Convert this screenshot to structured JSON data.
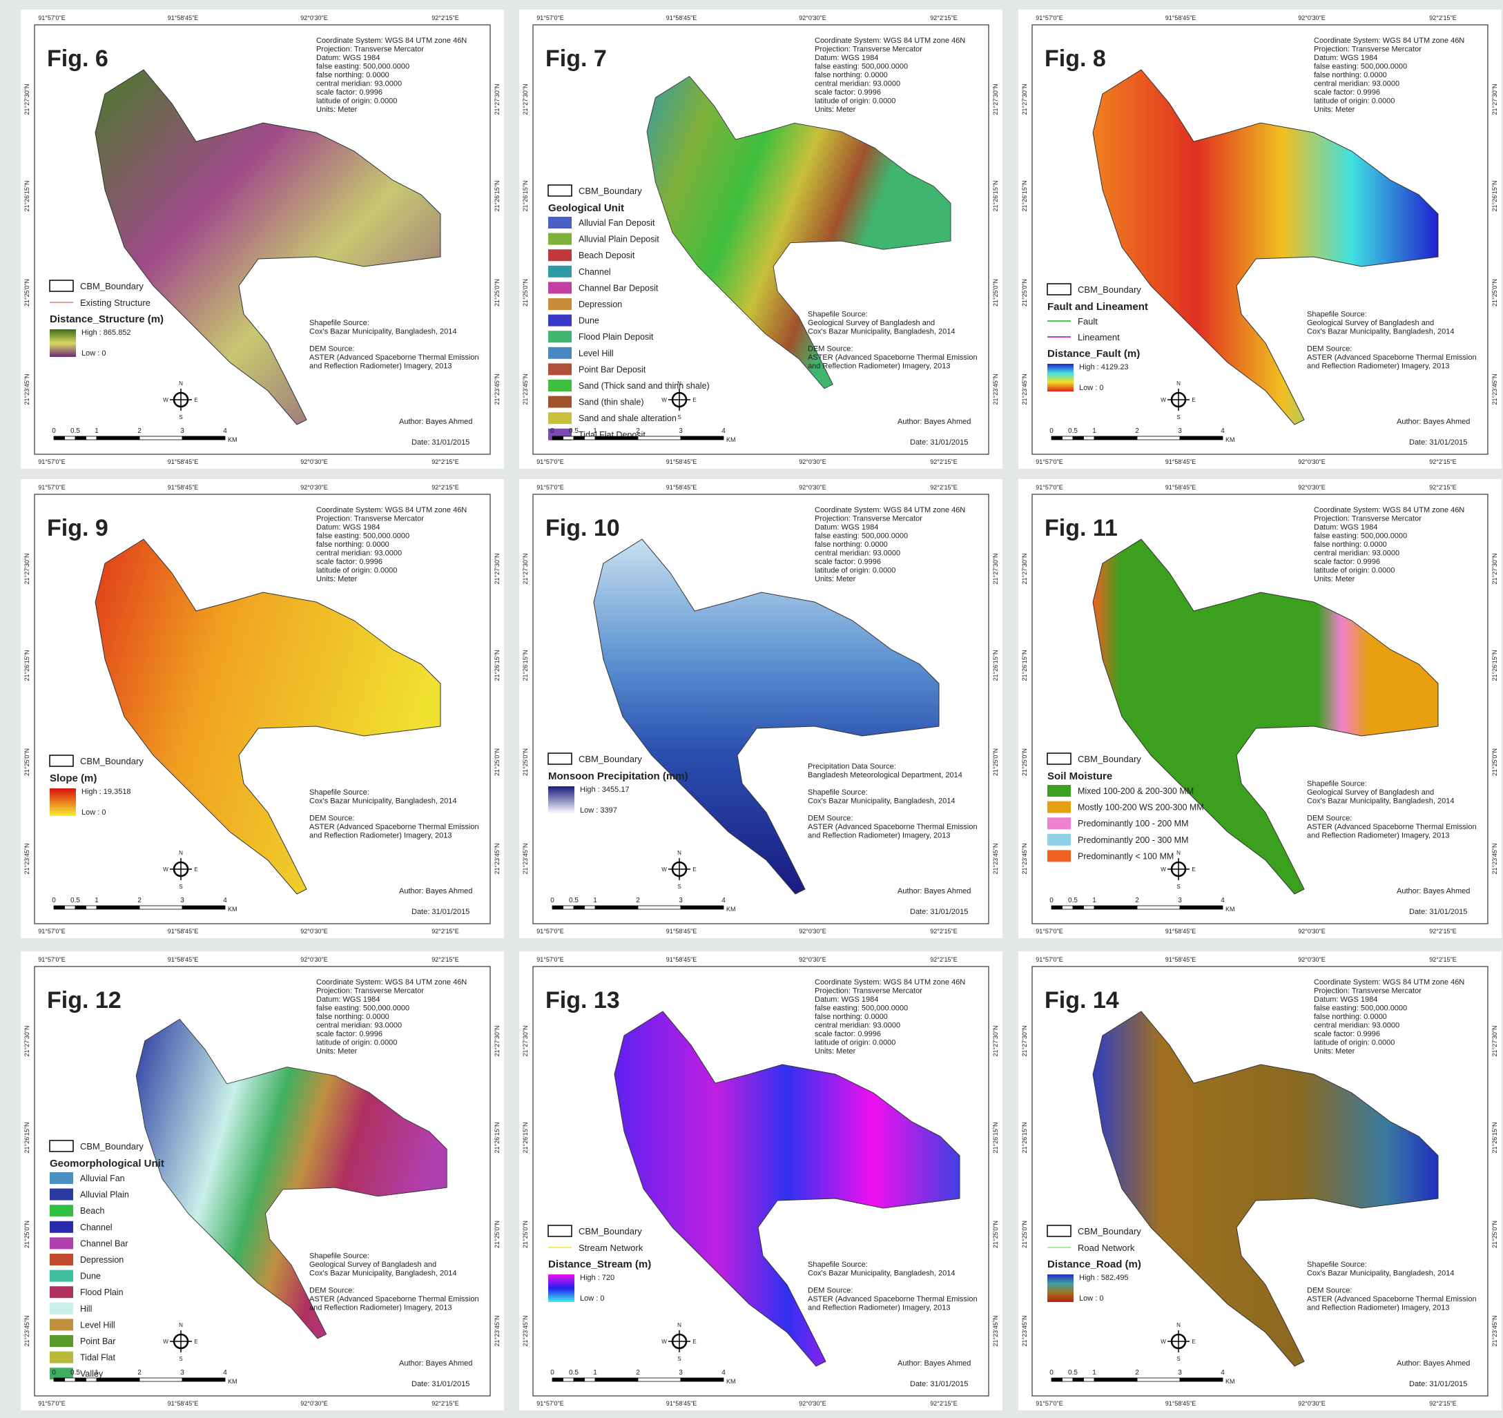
{
  "common": {
    "lon_labels": [
      "91°57'0\"E",
      "91°58'45\"E",
      "92°0'30\"E",
      "92°2'15\"E"
    ],
    "lat_labels": [
      "21°27'30\"N",
      "21°26'15\"N",
      "21°25'0\"N",
      "21°23'45\"N"
    ],
    "projection": [
      "Coordinate System: WGS 84 UTM zone 46N",
      "Projection: Transverse Mercator",
      "Datum: WGS 1984",
      "false easting: 500,000.0000",
      "false northing: 0.0000",
      "central meridian: 93.0000",
      "scale factor: 0.9996",
      "latitude of origin: 0.0000",
      "Units: Meter"
    ],
    "scale_labels": [
      "0",
      "0.5",
      "1",
      "2",
      "3",
      "4",
      "KM"
    ],
    "compass": [
      "N",
      "E",
      "S",
      "W"
    ],
    "author": "Author: Bayes Ahmed",
    "date": "Date: 31/01/2015"
  },
  "panels": [
    {
      "figure": "Fig. 6",
      "legend": [
        {
          "kind": "box",
          "label": "CBM_Boundary"
        },
        {
          "kind": "line",
          "label": "Existing Structure",
          "color": "#e8a0a0"
        },
        {
          "kind": "heading",
          "label": "Distance_Structure (m)"
        },
        {
          "kind": "ramp",
          "high": "High : 865.852",
          "low": "Low : 0",
          "colors": [
            "#3a6a1a",
            "#d8d860",
            "#6a2a7a"
          ]
        }
      ],
      "sources": [
        [
          "Shapefile Source:",
          "Cox's Bazar Municipality, Bangladesh, 2014"
        ],
        [
          "DEM Source:",
          "ASTER (Advanced Spaceborne Thermal Emission",
          "and Reflection Radiometer) Imagery, 2013"
        ]
      ]
    },
    {
      "figure": "Fig. 7",
      "legend": [
        {
          "kind": "box",
          "label": "CBM_Boundary"
        },
        {
          "kind": "heading",
          "label": "Geological Unit"
        },
        {
          "kind": "swatch",
          "label": "Alluvial Fan Deposit",
          "color": "#4a5fc1"
        },
        {
          "kind": "swatch",
          "label": "Alluvial Plain Deposit",
          "color": "#7fb03a"
        },
        {
          "kind": "swatch",
          "label": "Beach Deposit",
          "color": "#c0393b"
        },
        {
          "kind": "swatch",
          "label": "Channel",
          "color": "#2e9aa3"
        },
        {
          "kind": "swatch",
          "label": "Channel Bar Deposit",
          "color": "#c03fa0"
        },
        {
          "kind": "swatch",
          "label": "Depression",
          "color": "#c98a3a"
        },
        {
          "kind": "swatch",
          "label": "Dune",
          "color": "#3a3ac8"
        },
        {
          "kind": "swatch",
          "label": "Flood Plain Deposit",
          "color": "#3fb56f"
        },
        {
          "kind": "swatch",
          "label": "Level Hill",
          "color": "#4a86c0"
        },
        {
          "kind": "swatch",
          "label": "Point Bar Deposit",
          "color": "#b0503a"
        },
        {
          "kind": "swatch",
          "label": "Sand (Thick sand and thinn shale)",
          "color": "#3fbf3f"
        },
        {
          "kind": "swatch",
          "label": "Sand (thin shale)",
          "color": "#a0522d"
        },
        {
          "kind": "swatch",
          "label": "Sand and shale alteration",
          "color": "#c8c03a"
        },
        {
          "kind": "swatch",
          "label": "Tidal Flat Deposit",
          "color": "#7a4ab0"
        }
      ],
      "sources": [
        [
          "Shapefile Source:",
          "Geological Survey of Bangladesh and",
          "Cox's Bazar Municipality, Bangladesh, 2014"
        ],
        [
          "DEM Source:",
          "ASTER (Advanced Spaceborne Thermal Emission",
          "and Reflection Radiometer) Imagery, 2013"
        ]
      ]
    },
    {
      "figure": "Fig. 8",
      "legend": [
        {
          "kind": "box",
          "label": "CBM_Boundary"
        },
        {
          "kind": "heading",
          "label": "Fault and Lineament"
        },
        {
          "kind": "line",
          "label": "Fault",
          "color": "#40d040"
        },
        {
          "kind": "line",
          "label": "Lineament",
          "color": "#c040c0"
        },
        {
          "kind": "heading",
          "label": "Distance_Fault (m)"
        },
        {
          "kind": "ramp",
          "high": "High : 4129.23",
          "low": "Low : 0",
          "colors": [
            "#2020d0",
            "#40e0e0",
            "#f0e020",
            "#e02020"
          ]
        }
      ],
      "sources": [
        [
          "Shapefile Source:",
          "Geological Survey of Bangladesh and",
          "Cox's Bazar Municipality, Bangladesh, 2014"
        ],
        [
          "DEM Source:",
          "ASTER (Advanced Spaceborne Thermal Emission",
          "and Reflection Radiometer) Imagery, 2013"
        ]
      ]
    },
    {
      "figure": "Fig. 9",
      "legend": [
        {
          "kind": "box",
          "label": "CBM_Boundary"
        },
        {
          "kind": "heading",
          "label": "Slope (m)"
        },
        {
          "kind": "ramp",
          "high": "High : 19.3518",
          "low": "Low : 0",
          "colors": [
            "#d81010",
            "#f8f030"
          ]
        }
      ],
      "sources": [
        [
          "Shapefile Source:",
          "Cox's Bazar Municipality, Bangladesh, 2014"
        ],
        [
          "DEM Source:",
          "ASTER (Advanced Spaceborne Thermal Emission",
          "and Reflection Radiometer) Imagery, 2013"
        ]
      ]
    },
    {
      "figure": "Fig. 10",
      "legend": [
        {
          "kind": "box",
          "label": "CBM_Boundary"
        },
        {
          "kind": "heading",
          "label": "Monsoon Precipitation (mm)"
        },
        {
          "kind": "ramp",
          "high": "High : 3455.17",
          "low": "Low : 3397",
          "colors": [
            "#1a1a80",
            "#ffffff"
          ]
        }
      ],
      "sources": [
        [
          "Precipitation Data Source:",
          "Bangladesh Meteorological Department, 2014"
        ],
        [
          "Shapefile Source:",
          "Cox's Bazar Municipality, Bangladesh, 2014"
        ],
        [
          "DEM Source:",
          "ASTER (Advanced Spaceborne Thermal Emission",
          "and Reflection Radiometer) Imagery, 2013"
        ]
      ]
    },
    {
      "figure": "Fig. 11",
      "legend": [
        {
          "kind": "box",
          "label": "CBM_Boundary"
        },
        {
          "kind": "heading",
          "label": "Soil Moisture"
        },
        {
          "kind": "swatch",
          "label": "Mixed 100-200 & 200-300 MM",
          "color": "#3aa01e"
        },
        {
          "kind": "swatch",
          "label": "Mostly 100-200 WS 200-300 MM",
          "color": "#e8a010"
        },
        {
          "kind": "swatch",
          "label": "Predominantly 100 - 200 MM",
          "color": "#f080d0"
        },
        {
          "kind": "swatch",
          "label": "Predominantly 200 - 300 MM",
          "color": "#90d0e8"
        },
        {
          "kind": "swatch",
          "label": "Predominantly < 100 MM",
          "color": "#f06020"
        }
      ],
      "sources": [
        [
          "Shapefile Source:",
          "Geological Survey of Bangladesh and",
          "Cox's Bazar Municipality, Bangladesh, 2014"
        ],
        [
          "DEM Source:",
          "ASTER (Advanced Spaceborne Thermal Emission",
          "and Reflection Radiometer) Imagery, 2013"
        ]
      ]
    },
    {
      "figure": "Fig. 12",
      "legend": [
        {
          "kind": "box",
          "label": "CBM_Boundary"
        },
        {
          "kind": "heading",
          "label": "Geomorphological Unit"
        },
        {
          "kind": "swatch",
          "label": "Alluvial Fan",
          "color": "#4a90c0"
        },
        {
          "kind": "swatch",
          "label": "Alluvial Plain",
          "color": "#2a3aa0"
        },
        {
          "kind": "swatch",
          "label": "Beach",
          "color": "#30c040"
        },
        {
          "kind": "swatch",
          "label": "Channel",
          "color": "#2a2ab0"
        },
        {
          "kind": "swatch",
          "label": "Channel Bar",
          "color": "#b040b0"
        },
        {
          "kind": "swatch",
          "label": "Depression",
          "color": "#c04a2a"
        },
        {
          "kind": "swatch",
          "label": "Dune",
          "color": "#40c0a0"
        },
        {
          "kind": "swatch",
          "label": "Flood Plain",
          "color": "#b03060"
        },
        {
          "kind": "swatch",
          "label": "Hill",
          "color": "#c8f0e8"
        },
        {
          "kind": "swatch",
          "label": "Level Hill",
          "color": "#c09040"
        },
        {
          "kind": "swatch",
          "label": "Point Bar",
          "color": "#5a9a2a"
        },
        {
          "kind": "swatch",
          "label": "Tidal Flat",
          "color": "#b8b83a"
        },
        {
          "kind": "swatch",
          "label": "Valley",
          "color": "#40b060"
        }
      ],
      "sources": [
        [
          "Shapefile Source:",
          "Geological Survey of Bangladesh and",
          "Cox's Bazar Municipality, Bangladesh, 2014"
        ],
        [
          "DEM Source:",
          "ASTER (Advanced Spaceborne Thermal Emission",
          "and Reflection Radiometer) Imagery, 2013"
        ]
      ]
    },
    {
      "figure": "Fig. 13",
      "legend": [
        {
          "kind": "box",
          "label": "CBM_Boundary"
        },
        {
          "kind": "line",
          "label": "Stream Network",
          "color": "#f0f060"
        },
        {
          "kind": "heading",
          "label": "Distance_Stream (m)"
        },
        {
          "kind": "ramp",
          "high": "High : 720",
          "low": "Low : 0",
          "colors": [
            "#f010f0",
            "#2020f0",
            "#40f0f0"
          ]
        }
      ],
      "sources": [
        [
          "Shapefile Source:",
          "Cox's Bazar Municipality, Bangladesh, 2014"
        ],
        [
          "DEM Source:",
          "ASTER (Advanced Spaceborne Thermal Emission",
          "and Reflection Radiometer) Imagery, 2013"
        ]
      ]
    },
    {
      "figure": "Fig. 14",
      "legend": [
        {
          "kind": "box",
          "label": "CBM_Boundary"
        },
        {
          "kind": "line",
          "label": "Road Network",
          "color": "#a0f0a0"
        },
        {
          "kind": "heading",
          "label": "Distance_Road (m)"
        },
        {
          "kind": "ramp",
          "high": "High : 582.495",
          "low": "Low : 0",
          "colors": [
            "#2030c0",
            "#40a0a0",
            "#a07020",
            "#c02010"
          ]
        }
      ],
      "sources": [
        [
          "Shapefile Source:",
          "Cox's Bazar Municipality, Bangladesh, 2014"
        ],
        [
          "DEM Source:",
          "ASTER (Advanced Spaceborne Thermal Emission",
          "and Reflection Radiometer) Imagery, 2013"
        ]
      ]
    }
  ]
}
